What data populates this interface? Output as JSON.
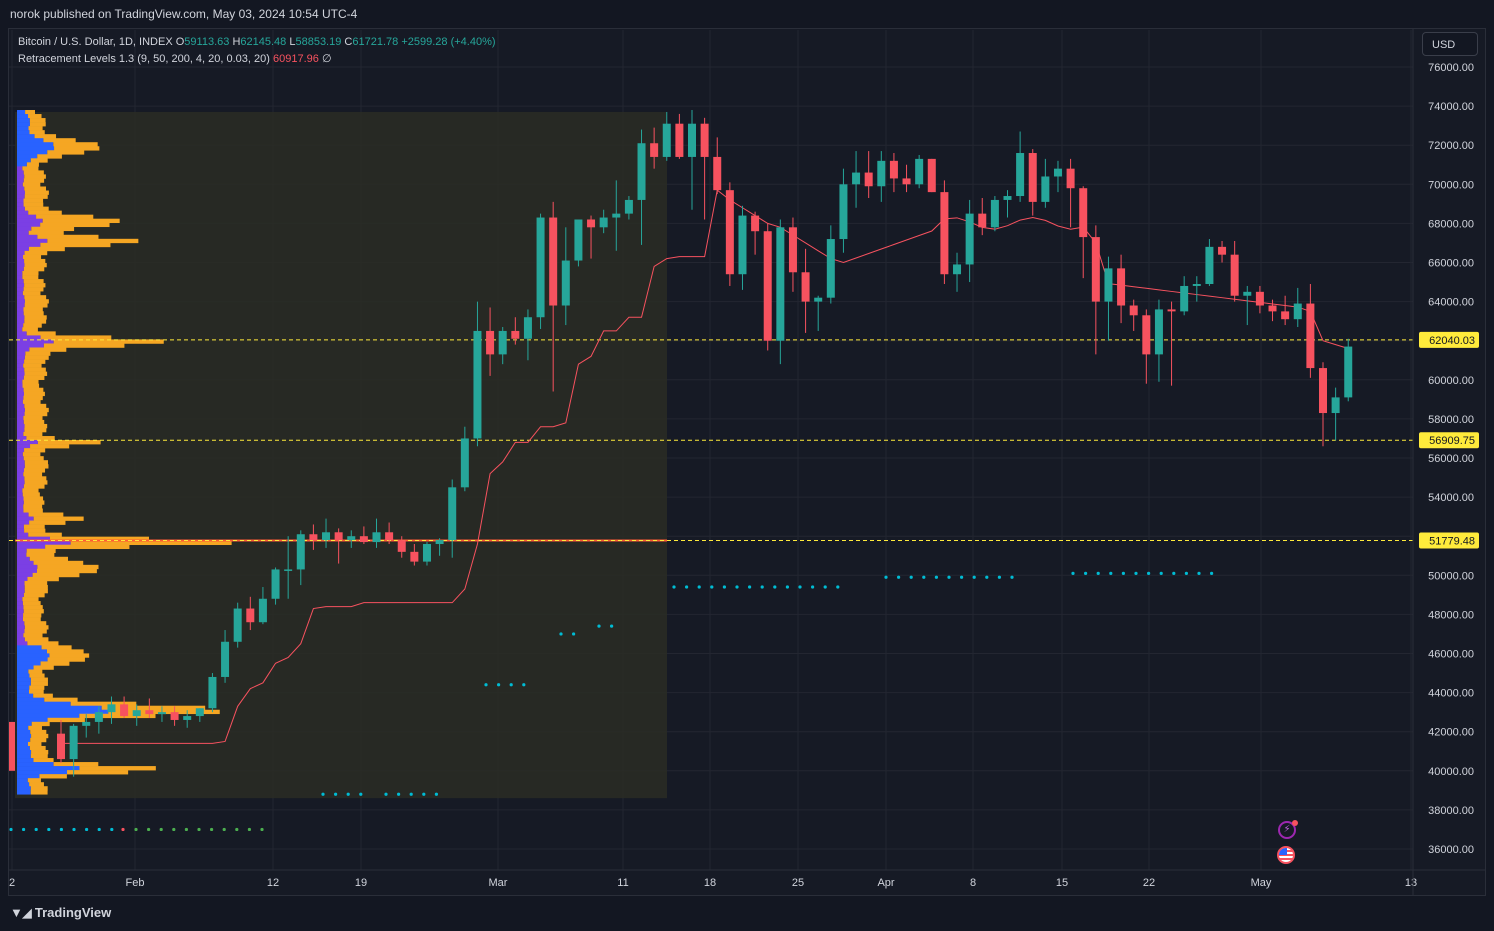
{
  "header": {
    "published": "norok published on TradingView.com, May 03, 2024 10:54 UTC-4"
  },
  "legend": {
    "symbol": "Bitcoin / U.S. Dollar, 1D, INDEX",
    "o_label": "O",
    "o_value": "59113.63",
    "h_label": "H",
    "h_value": "62145.48",
    "l_label": "L",
    "l_value": "58853.19",
    "c_label": "C",
    "c_value": "61721.78",
    "change": "+2599.28 (+4.40%)",
    "indicator": "Retracement Levels 1.3 (9, 50, 200, 4, 20, 0.03, 20)",
    "indicator_value": "60917.96",
    "indicator_extra": "∅"
  },
  "currency_button": "USD",
  "footer": {
    "brand": "TradingView"
  },
  "icons": {
    "bolt": "lightning-icon",
    "flag": "us-flag-icon"
  },
  "colors": {
    "up": "#26a69a",
    "down": "#f7525f",
    "level": "#ffeb3b",
    "trail": "#f7525f",
    "dots": "#00bcd4",
    "dots_green": "#4caf50",
    "vp_blue": "#2962ff",
    "vp_purple": "#7b3fe4",
    "vp_orange": "#f5a623"
  },
  "chart_data": {
    "type": "candlestick",
    "y_axis": {
      "range": [
        35000,
        77000
      ],
      "ticks": [
        "76000.00",
        "74000.00",
        "72000.00",
        "70000.00",
        "68000.00",
        "66000.00",
        "64000.00",
        "62000.00",
        "60000.00",
        "58000.00",
        "56000.00",
        "54000.00",
        "52000.00",
        "50000.00",
        "48000.00",
        "46000.00",
        "44000.00",
        "42000.00",
        "40000.00",
        "38000.00",
        "36000.00"
      ]
    },
    "x_axis": {
      "ticks": [
        "2",
        "Feb",
        "12",
        "19",
        "Mar",
        "11",
        "18",
        "25",
        "Apr",
        "8",
        "15",
        "22",
        "May",
        "13"
      ]
    },
    "levels": [
      {
        "label": "62040.03",
        "value": 62040.03
      },
      {
        "label": "56909.75",
        "value": 56909.75
      },
      {
        "label": "51779.48",
        "value": 51779.48
      }
    ],
    "candles": [
      {
        "o": 41900,
        "h": 42600,
        "l": 40400,
        "c": 40600
      },
      {
        "o": 40600,
        "h": 42400,
        "l": 39700,
        "c": 42300
      },
      {
        "o": 42300,
        "h": 42900,
        "l": 41700,
        "c": 42500
      },
      {
        "o": 42500,
        "h": 43300,
        "l": 41900,
        "c": 43000
      },
      {
        "o": 43000,
        "h": 43800,
        "l": 42400,
        "c": 43400
      },
      {
        "o": 43400,
        "h": 43800,
        "l": 42700,
        "c": 42800
      },
      {
        "o": 42800,
        "h": 43400,
        "l": 42300,
        "c": 43100
      },
      {
        "o": 43100,
        "h": 43700,
        "l": 42700,
        "c": 42900
      },
      {
        "o": 42900,
        "h": 43300,
        "l": 42500,
        "c": 43000
      },
      {
        "o": 43000,
        "h": 43300,
        "l": 42300,
        "c": 42600
      },
      {
        "o": 42600,
        "h": 43100,
        "l": 42200,
        "c": 42800
      },
      {
        "o": 42800,
        "h": 43200,
        "l": 42500,
        "c": 43200
      },
      {
        "o": 43200,
        "h": 45000,
        "l": 43000,
        "c": 44800
      },
      {
        "o": 44800,
        "h": 47200,
        "l": 44500,
        "c": 46600
      },
      {
        "o": 46600,
        "h": 48600,
        "l": 46300,
        "c": 48300
      },
      {
        "o": 48300,
        "h": 48900,
        "l": 47200,
        "c": 47600
      },
      {
        "o": 47600,
        "h": 49400,
        "l": 47500,
        "c": 48800
      },
      {
        "o": 48800,
        "h": 50400,
        "l": 48500,
        "c": 50300
      },
      {
        "o": 50300,
        "h": 52000,
        "l": 48800,
        "c": 50300
      },
      {
        "o": 50300,
        "h": 52300,
        "l": 49500,
        "c": 52100
      },
      {
        "o": 52100,
        "h": 52600,
        "l": 51300,
        "c": 51800
      },
      {
        "o": 51800,
        "h": 52900,
        "l": 51400,
        "c": 52200
      },
      {
        "o": 52200,
        "h": 52400,
        "l": 50600,
        "c": 51800
      },
      {
        "o": 51800,
        "h": 52300,
        "l": 51400,
        "c": 52000
      },
      {
        "o": 52000,
        "h": 52500,
        "l": 51600,
        "c": 51700
      },
      {
        "o": 51700,
        "h": 52900,
        "l": 51400,
        "c": 52200
      },
      {
        "o": 52200,
        "h": 52700,
        "l": 51600,
        "c": 51800
      },
      {
        "o": 51800,
        "h": 52000,
        "l": 50900,
        "c": 51200
      },
      {
        "o": 51200,
        "h": 51600,
        "l": 50500,
        "c": 50700
      },
      {
        "o": 50700,
        "h": 51700,
        "l": 50500,
        "c": 51600
      },
      {
        "o": 51600,
        "h": 51900,
        "l": 51000,
        "c": 51800
      },
      {
        "o": 51800,
        "h": 54900,
        "l": 50900,
        "c": 54500
      },
      {
        "o": 54500,
        "h": 57600,
        "l": 54300,
        "c": 57000
      },
      {
        "o": 57000,
        "h": 64000,
        "l": 56600,
        "c": 62500
      },
      {
        "o": 62500,
        "h": 63700,
        "l": 60200,
        "c": 61300
      },
      {
        "o": 61300,
        "h": 62700,
        "l": 60800,
        "c": 62500
      },
      {
        "o": 62500,
        "h": 63200,
        "l": 61800,
        "c": 62100
      },
      {
        "o": 62100,
        "h": 63600,
        "l": 61000,
        "c": 63200
      },
      {
        "o": 63200,
        "h": 68500,
        "l": 62600,
        "c": 68300
      },
      {
        "o": 68300,
        "h": 69100,
        "l": 59400,
        "c": 63800
      },
      {
        "o": 63800,
        "h": 67800,
        "l": 62800,
        "c": 66100
      },
      {
        "o": 66100,
        "h": 68200,
        "l": 65800,
        "c": 68200
      },
      {
        "o": 68200,
        "h": 68400,
        "l": 66200,
        "c": 67800
      },
      {
        "o": 67800,
        "h": 68700,
        "l": 67500,
        "c": 68300
      },
      {
        "o": 68300,
        "h": 70200,
        "l": 66600,
        "c": 68500
      },
      {
        "o": 68500,
        "h": 69400,
        "l": 68200,
        "c": 69200
      },
      {
        "o": 69200,
        "h": 72800,
        "l": 66900,
        "c": 72100
      },
      {
        "o": 72100,
        "h": 72900,
        "l": 70800,
        "c": 71400
      },
      {
        "o": 71400,
        "h": 73700,
        "l": 71200,
        "c": 73100
      },
      {
        "o": 73100,
        "h": 73600,
        "l": 71300,
        "c": 71400
      },
      {
        "o": 71400,
        "h": 73800,
        "l": 68700,
        "c": 73100
      },
      {
        "o": 73100,
        "h": 73400,
        "l": 68200,
        "c": 71400
      },
      {
        "o": 71400,
        "h": 72400,
        "l": 69500,
        "c": 69700
      },
      {
        "o": 69700,
        "h": 70100,
        "l": 64800,
        "c": 65400
      },
      {
        "o": 65400,
        "h": 68900,
        "l": 64600,
        "c": 68400
      },
      {
        "o": 68400,
        "h": 68600,
        "l": 66400,
        "c": 67600
      },
      {
        "o": 67600,
        "h": 68000,
        "l": 61500,
        "c": 62000
      },
      {
        "o": 62000,
        "h": 68200,
        "l": 60800,
        "c": 67800
      },
      {
        "o": 67800,
        "h": 68300,
        "l": 64500,
        "c": 65500
      },
      {
        "o": 65500,
        "h": 66700,
        "l": 62400,
        "c": 64000
      },
      {
        "o": 64000,
        "h": 64300,
        "l": 62500,
        "c": 64200
      },
      {
        "o": 64200,
        "h": 67900,
        "l": 63900,
        "c": 67200
      },
      {
        "o": 67200,
        "h": 70800,
        "l": 66500,
        "c": 70000
      },
      {
        "o": 70000,
        "h": 71700,
        "l": 68800,
        "c": 70600
      },
      {
        "o": 70600,
        "h": 71700,
        "l": 69300,
        "c": 69900
      },
      {
        "o": 69900,
        "h": 71700,
        "l": 69100,
        "c": 71200
      },
      {
        "o": 71200,
        "h": 71600,
        "l": 69600,
        "c": 70300
      },
      {
        "o": 70300,
        "h": 71000,
        "l": 69600,
        "c": 70000
      },
      {
        "o": 70000,
        "h": 71500,
        "l": 69800,
        "c": 71300
      },
      {
        "o": 71300,
        "h": 71300,
        "l": 69600,
        "c": 69600
      },
      {
        "o": 69600,
        "h": 70200,
        "l": 64900,
        "c": 65400
      },
      {
        "o": 65400,
        "h": 66500,
        "l": 64500,
        "c": 65900
      },
      {
        "o": 65900,
        "h": 69200,
        "l": 65000,
        "c": 68500
      },
      {
        "o": 68500,
        "h": 69300,
        "l": 67400,
        "c": 67800
      },
      {
        "o": 67800,
        "h": 69400,
        "l": 67600,
        "c": 69200
      },
      {
        "o": 69200,
        "h": 69700,
        "l": 68300,
        "c": 69400
      },
      {
        "o": 69400,
        "h": 72700,
        "l": 69100,
        "c": 71600
      },
      {
        "o": 71600,
        "h": 71800,
        "l": 68400,
        "c": 69100
      },
      {
        "o": 69100,
        "h": 71300,
        "l": 68800,
        "c": 70400
      },
      {
        "o": 70400,
        "h": 71200,
        "l": 69600,
        "c": 70800
      },
      {
        "o": 70800,
        "h": 71300,
        "l": 67800,
        "c": 69800
      },
      {
        "o": 69800,
        "h": 69900,
        "l": 65200,
        "c": 67300
      },
      {
        "o": 67300,
        "h": 67900,
        "l": 61300,
        "c": 64000
      },
      {
        "o": 64000,
        "h": 66300,
        "l": 62000,
        "c": 65700
      },
      {
        "o": 65700,
        "h": 66400,
        "l": 62900,
        "c": 63800
      },
      {
        "o": 63800,
        "h": 64100,
        "l": 62500,
        "c": 63300
      },
      {
        "o": 63300,
        "h": 63600,
        "l": 59800,
        "c": 61300
      },
      {
        "o": 61300,
        "h": 64100,
        "l": 59900,
        "c": 63600
      },
      {
        "o": 63600,
        "h": 64000,
        "l": 59700,
        "c": 63500
      },
      {
        "o": 63500,
        "h": 65300,
        "l": 63300,
        "c": 64800
      },
      {
        "o": 64800,
        "h": 65300,
        "l": 64000,
        "c": 64900
      },
      {
        "o": 64900,
        "h": 67200,
        "l": 64800,
        "c": 66800
      },
      {
        "o": 66800,
        "h": 67100,
        "l": 66000,
        "c": 66400
      },
      {
        "o": 66400,
        "h": 67100,
        "l": 64000,
        "c": 64300
      },
      {
        "o": 64300,
        "h": 64800,
        "l": 62800,
        "c": 64500
      },
      {
        "o": 64500,
        "h": 64800,
        "l": 63400,
        "c": 63800
      },
      {
        "o": 63800,
        "h": 64100,
        "l": 63000,
        "c": 63500
      },
      {
        "o": 63500,
        "h": 64300,
        "l": 62800,
        "c": 63100
      },
      {
        "o": 63100,
        "h": 64700,
        "l": 62700,
        "c": 63900
      },
      {
        "o": 63900,
        "h": 64900,
        "l": 60100,
        "c": 60600
      },
      {
        "o": 60600,
        "h": 60900,
        "l": 56600,
        "c": 58300
      },
      {
        "o": 58300,
        "h": 59600,
        "l": 56900,
        "c": 59100
      },
      {
        "o": 59100,
        "h": 62100,
        "l": 58900,
        "c": 61700
      }
    ]
  }
}
